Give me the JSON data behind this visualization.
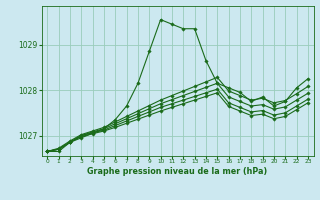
{
  "title": "Graphe pression niveau de la mer (hPa)",
  "background_color": "#cce8f0",
  "grid_color": "#99ccbb",
  "line_color": "#1a6b1a",
  "marker_color": "#1a6b1a",
  "xlim": [
    -0.5,
    23.5
  ],
  "ylim": [
    1026.55,
    1029.85
  ],
  "yticks": [
    1027,
    1028,
    1029
  ],
  "xtick_labels": [
    "0",
    "1",
    "2",
    "3",
    "4",
    "5",
    "6",
    "7",
    "8",
    "9",
    "10",
    "11",
    "12",
    "13",
    "14",
    "15",
    "16",
    "17",
    "18",
    "19",
    "20",
    "21",
    "22",
    "23"
  ],
  "series": [
    [
      1026.65,
      1026.65,
      1026.85,
      1026.95,
      1027.05,
      1027.15,
      1027.35,
      1027.65,
      1028.15,
      1028.85,
      1029.55,
      1029.45,
      1029.35,
      1029.35,
      1028.65,
      1028.15,
      1028.05,
      1027.95,
      1027.75,
      1027.85,
      1027.65,
      1027.75,
      1028.05,
      1028.25
    ],
    [
      1026.65,
      1026.72,
      1026.88,
      1027.02,
      1027.1,
      1027.18,
      1027.3,
      1027.42,
      1027.54,
      1027.66,
      1027.78,
      1027.88,
      1027.98,
      1028.08,
      1028.18,
      1028.28,
      1027.98,
      1027.88,
      1027.78,
      1027.82,
      1027.72,
      1027.77,
      1027.92,
      1028.08
    ],
    [
      1026.65,
      1026.7,
      1026.85,
      1027.0,
      1027.08,
      1027.15,
      1027.26,
      1027.37,
      1027.48,
      1027.59,
      1027.7,
      1027.79,
      1027.88,
      1027.97,
      1028.06,
      1028.15,
      1027.85,
      1027.75,
      1027.65,
      1027.68,
      1027.58,
      1027.63,
      1027.78,
      1027.93
    ],
    [
      1026.65,
      1026.7,
      1026.85,
      1027.0,
      1027.06,
      1027.12,
      1027.22,
      1027.32,
      1027.42,
      1027.52,
      1027.62,
      1027.7,
      1027.78,
      1027.86,
      1027.94,
      1028.02,
      1027.72,
      1027.62,
      1027.52,
      1027.55,
      1027.45,
      1027.5,
      1027.65,
      1027.8
    ],
    [
      1026.65,
      1026.7,
      1026.85,
      1026.98,
      1027.04,
      1027.1,
      1027.18,
      1027.27,
      1027.36,
      1027.45,
      1027.54,
      1027.62,
      1027.7,
      1027.78,
      1027.86,
      1027.94,
      1027.64,
      1027.54,
      1027.44,
      1027.47,
      1027.37,
      1027.42,
      1027.57,
      1027.72
    ]
  ]
}
